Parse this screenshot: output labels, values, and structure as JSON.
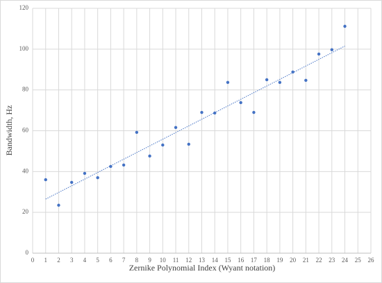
{
  "chart_data": {
    "type": "scatter",
    "x_label": "Zernike Polynomial Index (Wyant notation)",
    "y_label": "Bandwidth, Hz",
    "series": [
      {
        "color": "#4472c4",
        "x": [
          1,
          2,
          3,
          4,
          5,
          6,
          7,
          8,
          9,
          10,
          11,
          12,
          13,
          14,
          15,
          16,
          17,
          18,
          19,
          20,
          21,
          22,
          23,
          24
        ],
        "values": [
          36,
          23.5,
          34.7,
          39.1,
          37,
          42.5,
          43.2,
          59.2,
          47.6,
          53,
          61.6,
          53.4,
          69,
          68.7,
          83.7,
          73.8,
          69,
          85,
          83.7,
          88.8,
          84.7,
          97.6,
          99.7,
          111.2
        ]
      }
    ],
    "trendline": {
      "color": "#4472c4",
      "x": [
        1,
        24
      ],
      "values": [
        26.5,
        101.5
      ]
    },
    "xlim": [
      0,
      26
    ],
    "xticks": [
      0,
      1,
      2,
      3,
      4,
      5,
      6,
      7,
      8,
      9,
      10,
      11,
      12,
      13,
      14,
      15,
      16,
      17,
      18,
      19,
      20,
      21,
      22,
      23,
      24,
      25,
      26
    ],
    "ylim": [
      0,
      120
    ],
    "yticks": [
      0,
      20,
      40,
      60,
      80,
      100,
      120
    ],
    "grid": true
  }
}
